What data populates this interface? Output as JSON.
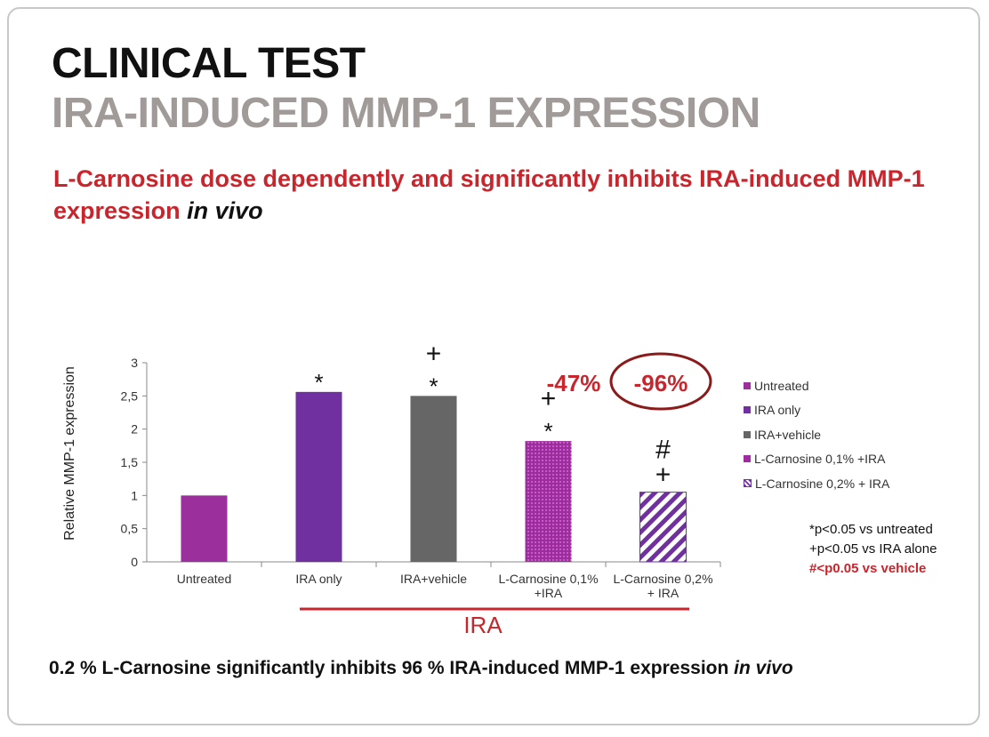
{
  "slide": {
    "title_line1": "CLINICAL TEST",
    "title_line2": "IRA-INDUCED MMP-1 EXPRESSION",
    "subtitle_main": "L-Carnosine dose dependently and significantly inhibits IRA-induced MMP-1 expression ",
    "subtitle_italic": "in vivo",
    "footer_main": "0.2 % L-Carnosine significantly inhibits 96 % IRA-induced MMP-1 expression ",
    "footer_italic": "in vivo"
  },
  "notes": {
    "line1": "*p<0.05 vs untreated",
    "line2": "+p<0.05 vs IRA alone",
    "line3": "#<p0.05 vs vehicle"
  },
  "legend": [
    {
      "label": "Untreated",
      "color": "#9b2f9c"
    },
    {
      "label": "IRA only",
      "color": "#7030a0"
    },
    {
      "label": "IRA+vehicle",
      "color": "#666666"
    },
    {
      "label": "L-Carnosine 0,1% +IRA",
      "color": "#a02ba0"
    },
    {
      "label": "L-Carnosine 0,2% + IRA",
      "color": "#7030a0"
    }
  ],
  "chart_data": {
    "type": "bar",
    "ylabel": "Relative MMP-1 expression",
    "ylim": [
      0,
      3
    ],
    "yticks": [
      "0",
      "0,5",
      "1",
      "1,5",
      "2",
      "2,5",
      "3"
    ],
    "categories": [
      "Untreated",
      "IRA only",
      "IRA+vehicle",
      "L-Carnosine 0,1% +IRA",
      "L-Carnosine 0,2% + IRA"
    ],
    "category_lines": [
      [
        "Untreated"
      ],
      [
        "IRA only"
      ],
      [
        "IRA+vehicle"
      ],
      [
        "L-Carnosine 0,1%",
        "+IRA"
      ],
      [
        "L-Carnosine 0,2%",
        "+ IRA"
      ]
    ],
    "values": [
      1.0,
      2.56,
      2.5,
      1.82,
      1.05
    ],
    "colors": [
      "#9b2f9c",
      "#7030a0",
      "#666666",
      "#a02ba0",
      "#7030a0"
    ],
    "markers": [
      "",
      "*",
      "+\n*",
      "+\n*",
      "#\n+"
    ],
    "annotations": {
      "reduction_01": "-47%",
      "reduction_02": "-96%",
      "group_label": "IRA"
    },
    "grid": false,
    "legend_position": "right"
  }
}
